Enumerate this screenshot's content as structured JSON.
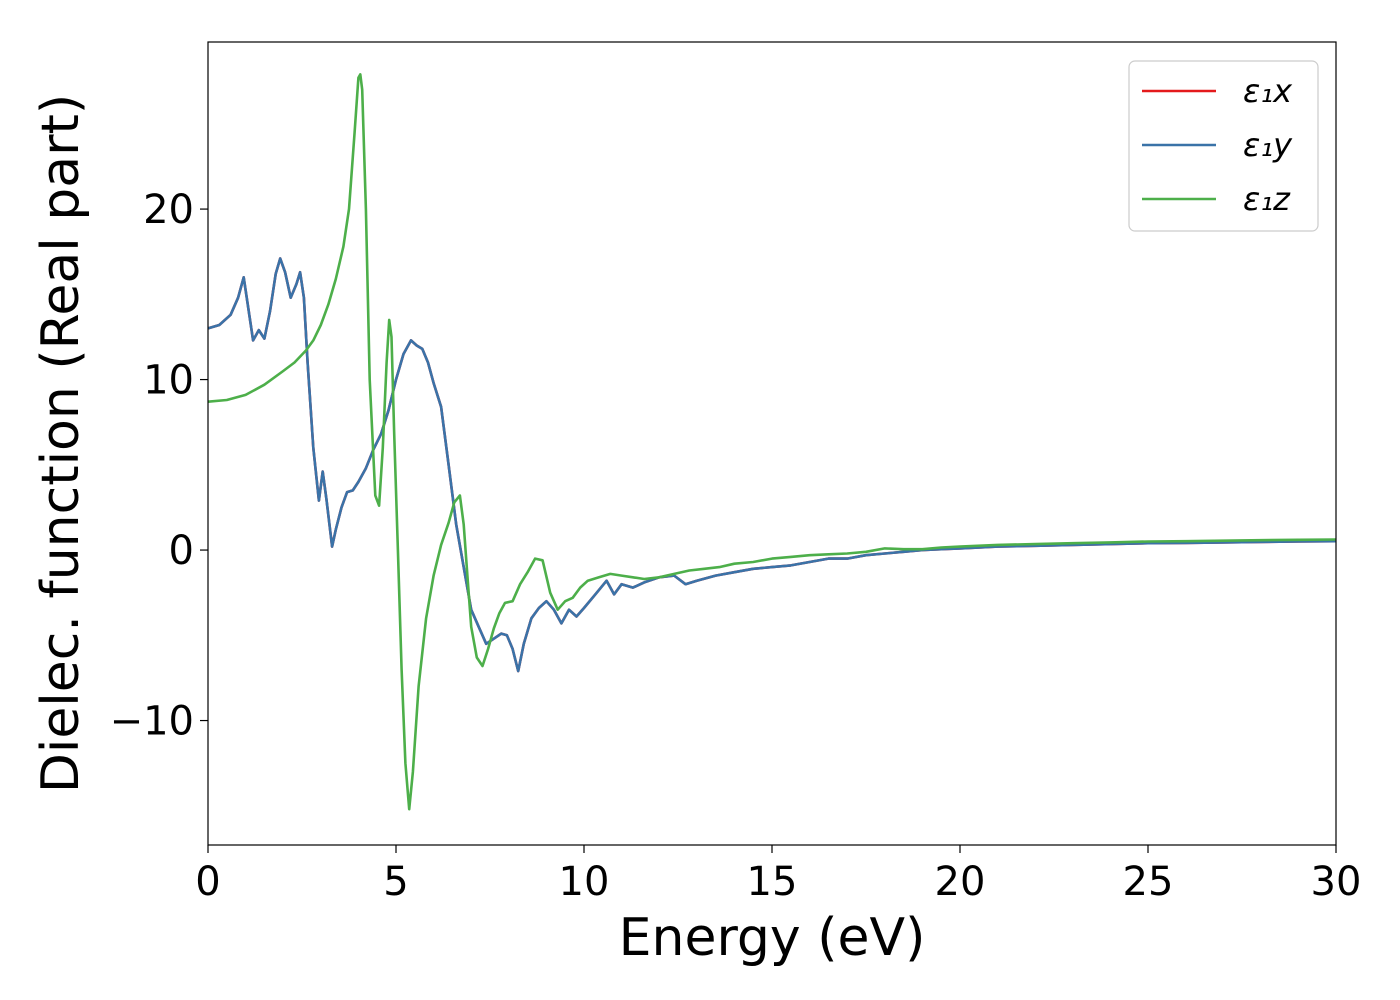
{
  "chart_data": {
    "type": "line",
    "xlabel": "Energy (eV)",
    "ylabel": "Dielec. function (Real part)",
    "xlim": [
      0,
      30
    ],
    "ylim": [
      -17.3,
      29.8
    ],
    "xticks": [
      0,
      5,
      10,
      15,
      20,
      25,
      30
    ],
    "xtick_labels": [
      "0",
      "5",
      "10",
      "15",
      "20",
      "25",
      "30"
    ],
    "yticks": [
      -10,
      0,
      10,
      20
    ],
    "ytick_labels": [
      "−10",
      "0",
      "10",
      "20"
    ],
    "grid": false,
    "legend_position": "top-right",
    "series": [
      {
        "name": "ε₁x",
        "color": "#e41a1c",
        "x": [
          0,
          0.3,
          0.6,
          0.8,
          0.95,
          1.05,
          1.2,
          1.35,
          1.5,
          1.65,
          1.8,
          1.92,
          2.05,
          2.2,
          2.35,
          2.45,
          2.55,
          2.65,
          2.8,
          2.95,
          3.05,
          3.15,
          3.3,
          3.4,
          3.55,
          3.7,
          3.85,
          4.0,
          4.2,
          4.4,
          4.6,
          4.8,
          5.0,
          5.2,
          5.4,
          5.55,
          5.7,
          5.85,
          6.0,
          6.2,
          6.4,
          6.6,
          6.8,
          7.0,
          7.2,
          7.4,
          7.6,
          7.8,
          7.95,
          8.1,
          8.25,
          8.4,
          8.6,
          8.8,
          9.0,
          9.2,
          9.4,
          9.6,
          9.8,
          10.0,
          10.3,
          10.6,
          10.8,
          11.0,
          11.3,
          11.6,
          12.0,
          12.4,
          12.7,
          13.0,
          13.5,
          14.0,
          14.5,
          15.0,
          15.5,
          16.0,
          16.5,
          17.0,
          17.5,
          18.0,
          18.5,
          19.0,
          19.5,
          20.0,
          21.0,
          22.0,
          23.0,
          24.0,
          25.0,
          26.0,
          27.0,
          28.0,
          29.0,
          30.0
        ],
        "y": [
          13.0,
          13.2,
          13.8,
          14.8,
          16.0,
          14.5,
          12.3,
          12.9,
          12.4,
          14.0,
          16.2,
          17.1,
          16.3,
          14.8,
          15.6,
          16.3,
          14.8,
          11.0,
          6.0,
          2.9,
          4.6,
          3.0,
          0.2,
          1.2,
          2.5,
          3.4,
          3.5,
          4.0,
          4.8,
          5.9,
          6.8,
          8.2,
          10.0,
          11.5,
          12.3,
          12.0,
          11.8,
          11.0,
          9.8,
          8.4,
          5.0,
          1.5,
          -1.0,
          -3.5,
          -4.5,
          -5.5,
          -5.2,
          -4.9,
          -5.0,
          -5.8,
          -7.1,
          -5.5,
          -4.0,
          -3.4,
          -3.0,
          -3.5,
          -4.3,
          -3.5,
          -3.9,
          -3.4,
          -2.6,
          -1.8,
          -2.6,
          -2.0,
          -2.2,
          -1.9,
          -1.6,
          -1.5,
          -2.0,
          -1.8,
          -1.5,
          -1.3,
          -1.1,
          -1.0,
          -0.9,
          -0.7,
          -0.5,
          -0.5,
          -0.3,
          -0.2,
          -0.1,
          0.0,
          0.05,
          0.1,
          0.2,
          0.25,
          0.3,
          0.35,
          0.4,
          0.42,
          0.45,
          0.48,
          0.5,
          0.52
        ]
      },
      {
        "name": "ε₁y",
        "color": "#3a73a8",
        "x": [
          0,
          0.3,
          0.6,
          0.8,
          0.95,
          1.05,
          1.2,
          1.35,
          1.5,
          1.65,
          1.8,
          1.92,
          2.05,
          2.2,
          2.35,
          2.45,
          2.55,
          2.65,
          2.8,
          2.95,
          3.05,
          3.15,
          3.3,
          3.4,
          3.55,
          3.7,
          3.85,
          4.0,
          4.2,
          4.4,
          4.6,
          4.8,
          5.0,
          5.2,
          5.4,
          5.55,
          5.7,
          5.85,
          6.0,
          6.2,
          6.4,
          6.6,
          6.8,
          7.0,
          7.2,
          7.4,
          7.6,
          7.8,
          7.95,
          8.1,
          8.25,
          8.4,
          8.6,
          8.8,
          9.0,
          9.2,
          9.4,
          9.6,
          9.8,
          10.0,
          10.3,
          10.6,
          10.8,
          11.0,
          11.3,
          11.6,
          12.0,
          12.4,
          12.7,
          13.0,
          13.5,
          14.0,
          14.5,
          15.0,
          15.5,
          16.0,
          16.5,
          17.0,
          17.5,
          18.0,
          18.5,
          19.0,
          19.5,
          20.0,
          21.0,
          22.0,
          23.0,
          24.0,
          25.0,
          26.0,
          27.0,
          28.0,
          29.0,
          30.0
        ],
        "y": [
          13.0,
          13.2,
          13.8,
          14.8,
          16.0,
          14.5,
          12.3,
          12.9,
          12.4,
          14.0,
          16.2,
          17.1,
          16.3,
          14.8,
          15.6,
          16.3,
          14.8,
          11.0,
          6.0,
          2.9,
          4.6,
          3.0,
          0.2,
          1.2,
          2.5,
          3.4,
          3.5,
          4.0,
          4.8,
          5.9,
          6.8,
          8.2,
          10.0,
          11.5,
          12.3,
          12.0,
          11.8,
          11.0,
          9.8,
          8.4,
          5.0,
          1.5,
          -1.0,
          -3.5,
          -4.5,
          -5.5,
          -5.2,
          -4.9,
          -5.0,
          -5.8,
          -7.1,
          -5.5,
          -4.0,
          -3.4,
          -3.0,
          -3.5,
          -4.3,
          -3.5,
          -3.9,
          -3.4,
          -2.6,
          -1.8,
          -2.6,
          -2.0,
          -2.2,
          -1.9,
          -1.6,
          -1.5,
          -2.0,
          -1.8,
          -1.5,
          -1.3,
          -1.1,
          -1.0,
          -0.9,
          -0.7,
          -0.5,
          -0.5,
          -0.3,
          -0.2,
          -0.1,
          0.0,
          0.05,
          0.1,
          0.2,
          0.25,
          0.3,
          0.35,
          0.4,
          0.42,
          0.45,
          0.48,
          0.5,
          0.52
        ]
      },
      {
        "name": "ε₁z",
        "color": "#4daf4a",
        "x": [
          0,
          0.5,
          1.0,
          1.5,
          2.0,
          2.3,
          2.6,
          2.8,
          3.0,
          3.2,
          3.4,
          3.6,
          3.75,
          3.9,
          4.0,
          4.05,
          4.1,
          4.2,
          4.3,
          4.45,
          4.55,
          4.65,
          4.75,
          4.82,
          4.88,
          4.95,
          5.05,
          5.15,
          5.25,
          5.35,
          5.45,
          5.6,
          5.8,
          6.0,
          6.2,
          6.4,
          6.55,
          6.7,
          6.8,
          6.9,
          7.0,
          7.15,
          7.3,
          7.45,
          7.6,
          7.75,
          7.9,
          8.1,
          8.3,
          8.5,
          8.7,
          8.9,
          9.1,
          9.3,
          9.5,
          9.7,
          9.9,
          10.1,
          10.4,
          10.7,
          11.0,
          11.3,
          11.6,
          12.0,
          12.4,
          12.8,
          13.2,
          13.6,
          14.0,
          14.5,
          15.0,
          15.5,
          16.0,
          16.5,
          17.0,
          17.5,
          18.0,
          18.5,
          19.0,
          19.5,
          20.0,
          21.0,
          22.0,
          23.0,
          24.0,
          25.0,
          26.0,
          27.0,
          28.0,
          29.0,
          30.0
        ],
        "y": [
          8.7,
          8.8,
          9.1,
          9.7,
          10.5,
          11.0,
          11.7,
          12.3,
          13.2,
          14.4,
          15.9,
          17.8,
          20.0,
          24.5,
          27.7,
          27.9,
          27.0,
          20.0,
          10.0,
          3.2,
          2.6,
          6.0,
          11.0,
          13.5,
          12.5,
          7.0,
          0.0,
          -7.0,
          -12.5,
          -15.2,
          -13.0,
          -8.0,
          -4.0,
          -1.5,
          0.3,
          1.6,
          2.8,
          3.2,
          1.5,
          -1.5,
          -4.5,
          -6.3,
          -6.8,
          -5.8,
          -4.6,
          -3.7,
          -3.1,
          -3.0,
          -2.0,
          -1.3,
          -0.5,
          -0.6,
          -2.5,
          -3.5,
          -3.0,
          -2.8,
          -2.2,
          -1.8,
          -1.6,
          -1.4,
          -1.5,
          -1.6,
          -1.7,
          -1.6,
          -1.4,
          -1.2,
          -1.1,
          -1.0,
          -0.8,
          -0.7,
          -0.5,
          -0.4,
          -0.3,
          -0.25,
          -0.2,
          -0.1,
          0.1,
          0.05,
          0.05,
          0.15,
          0.2,
          0.3,
          0.35,
          0.4,
          0.45,
          0.5,
          0.52,
          0.55,
          0.58,
          0.6,
          0.62
        ]
      }
    ]
  }
}
